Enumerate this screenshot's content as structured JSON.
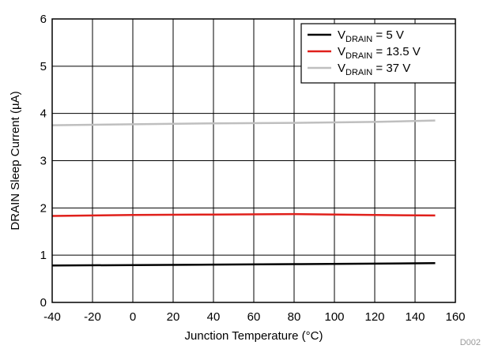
{
  "chart_data": {
    "type": "line",
    "xlabel": "Junction Temperature (°C)",
    "ylabel": "DRAIN Sleep Current (µA)",
    "xlim": [
      -40,
      160
    ],
    "ylim": [
      0,
      6
    ],
    "xticks": [
      -40,
      -20,
      0,
      20,
      40,
      60,
      80,
      100,
      120,
      140,
      160
    ],
    "yticks": [
      0,
      1,
      2,
      3,
      4,
      5,
      6
    ],
    "grid": true,
    "legend_position": "top-right",
    "figure_id": "D002",
    "series": [
      {
        "name_prefix": "V",
        "name_sub": "DRAIN",
        "name_suffix": " = 5 V",
        "color": "#000000",
        "x": [
          -40,
          0,
          40,
          80,
          120,
          150
        ],
        "values": [
          0.78,
          0.79,
          0.8,
          0.81,
          0.82,
          0.83
        ]
      },
      {
        "name_prefix": "V",
        "name_sub": "DRAIN",
        "name_suffix": " = 13.5 V",
        "color": "#e0201b",
        "x": [
          -40,
          0,
          40,
          80,
          120,
          150
        ],
        "values": [
          1.83,
          1.85,
          1.86,
          1.87,
          1.85,
          1.84
        ]
      },
      {
        "name_prefix": "V",
        "name_sub": "DRAIN",
        "name_suffix": " = 37 V",
        "color": "#bfbfbf",
        "x": [
          -40,
          0,
          40,
          80,
          120,
          150
        ],
        "values": [
          3.75,
          3.77,
          3.79,
          3.8,
          3.82,
          3.85
        ]
      }
    ]
  }
}
